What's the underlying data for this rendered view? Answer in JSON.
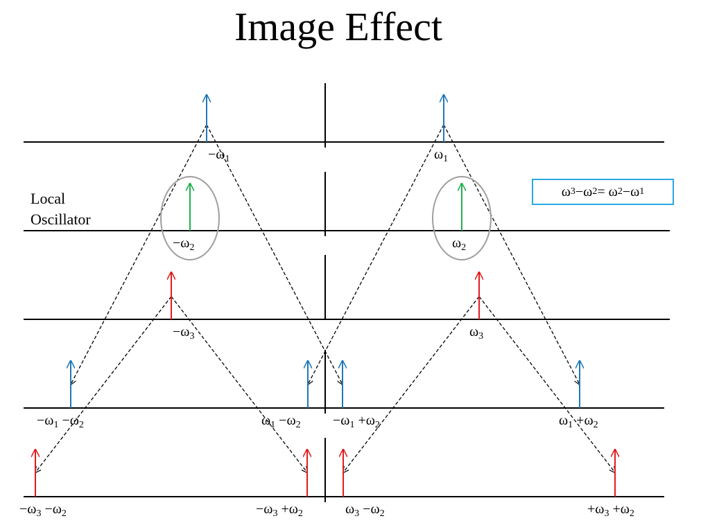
{
  "title": "Image Effect",
  "local_oscillator": {
    "line1": "Local",
    "line2": "Oscillator"
  },
  "equation": {
    "a": "ω",
    "as": "3",
    "op1": " −ω",
    "bs": "2",
    "eq": " = ω",
    "cs": "2",
    "op2": " −ω",
    "ds": "1"
  },
  "colors": {
    "signal": "#1f78b4",
    "lo": "#1fb04a",
    "image": "#e31a1c",
    "box": "#29a8e0"
  },
  "labels": [
    {
      "id": "neg-w1",
      "parts": [
        "−ω",
        "1"
      ]
    },
    {
      "id": "pos-w1",
      "parts": [
        "ω",
        "1"
      ]
    },
    {
      "id": "neg-w2",
      "parts": [
        "−ω",
        "2"
      ]
    },
    {
      "id": "pos-w2",
      "parts": [
        "ω",
        "2"
      ]
    },
    {
      "id": "neg-w3",
      "parts": [
        "−ω",
        "3"
      ]
    },
    {
      "id": "pos-w3",
      "parts": [
        "ω",
        "3"
      ]
    },
    {
      "id": "negw1-negw2",
      "parts": [
        "−ω",
        "1",
        " −ω",
        "2"
      ]
    },
    {
      "id": "w1-negw2",
      "parts": [
        "ω",
        "1",
        " −ω",
        "2"
      ]
    },
    {
      "id": "negw1-posw2",
      "parts": [
        "−ω",
        "1",
        " +ω",
        "2"
      ]
    },
    {
      "id": "w1-posw2",
      "parts": [
        "ω",
        "1",
        " +ω",
        "2"
      ]
    },
    {
      "id": "negw3-negw2",
      "parts": [
        "−ω",
        "3",
        " −ω",
        "2"
      ]
    },
    {
      "id": "negw3-posw2",
      "parts": [
        "−ω",
        "3",
        " +ω",
        "2"
      ]
    },
    {
      "id": "w3-negw2",
      "parts": [
        "ω",
        "3",
        " −ω",
        "2"
      ]
    },
    {
      "id": "posw3-posw2",
      "parts": [
        "+ω",
        "3",
        " +ω",
        "2"
      ]
    }
  ]
}
